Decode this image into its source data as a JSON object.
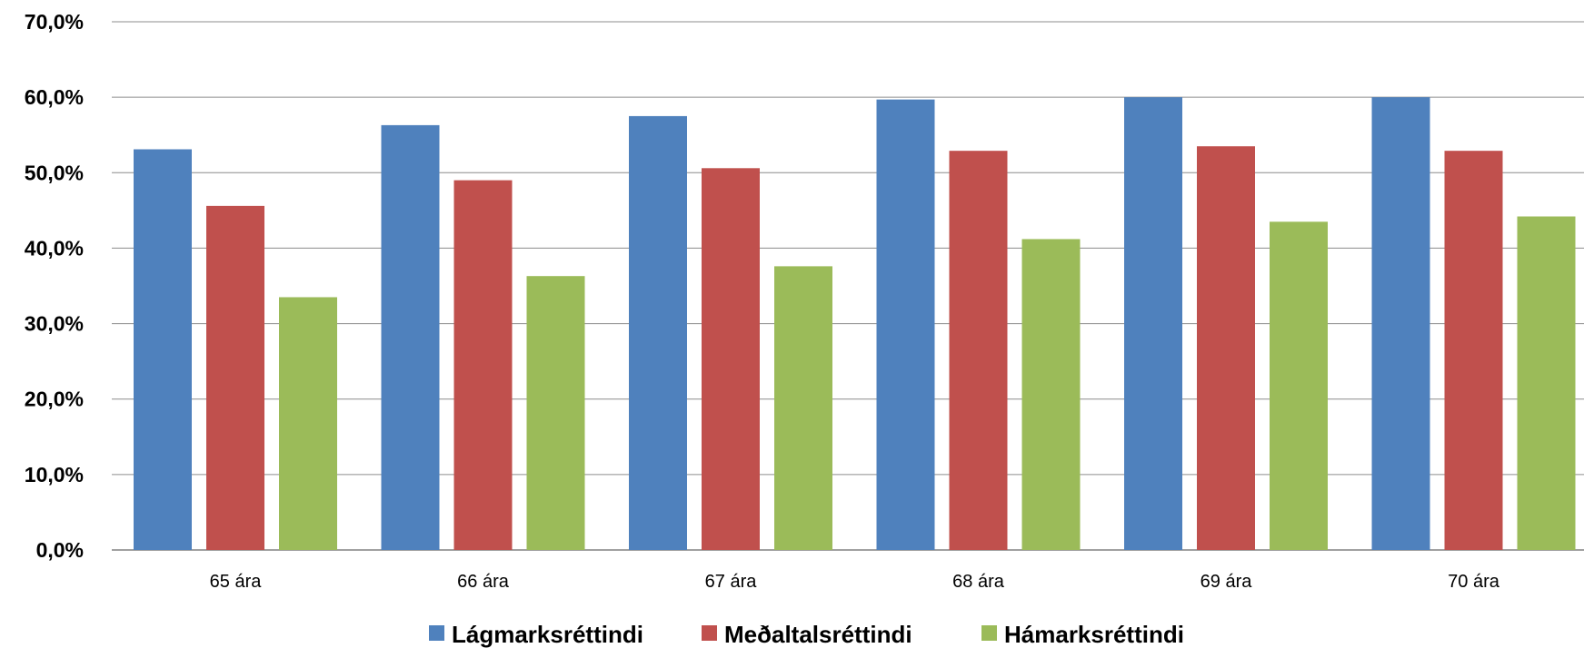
{
  "chart_data": {
    "type": "bar",
    "categories": [
      "65 ára",
      "66 ára",
      "67 ára",
      "68 ára",
      "69 ára",
      "70 ára"
    ],
    "series": [
      {
        "name": "Lágmarksréttindi",
        "color": "#4f81bd",
        "values": [
          53.1,
          56.3,
          57.5,
          59.7,
          60.0,
          60.0
        ]
      },
      {
        "name": "Meðaltalsréttindi",
        "color": "#c0504d",
        "values": [
          45.6,
          49.0,
          50.6,
          52.9,
          53.5,
          52.9
        ]
      },
      {
        "name": "Hámarksréttindi",
        "color": "#9bbb59",
        "values": [
          33.5,
          36.3,
          37.6,
          41.2,
          43.5,
          44.2
        ]
      }
    ],
    "ylim": [
      0,
      70
    ],
    "yticks": [
      "0,0%",
      "10,0%",
      "20,0%",
      "30,0%",
      "40,0%",
      "50,0%",
      "60,0%",
      "70,0%"
    ],
    "grid": true,
    "legend_position": "bottom"
  }
}
